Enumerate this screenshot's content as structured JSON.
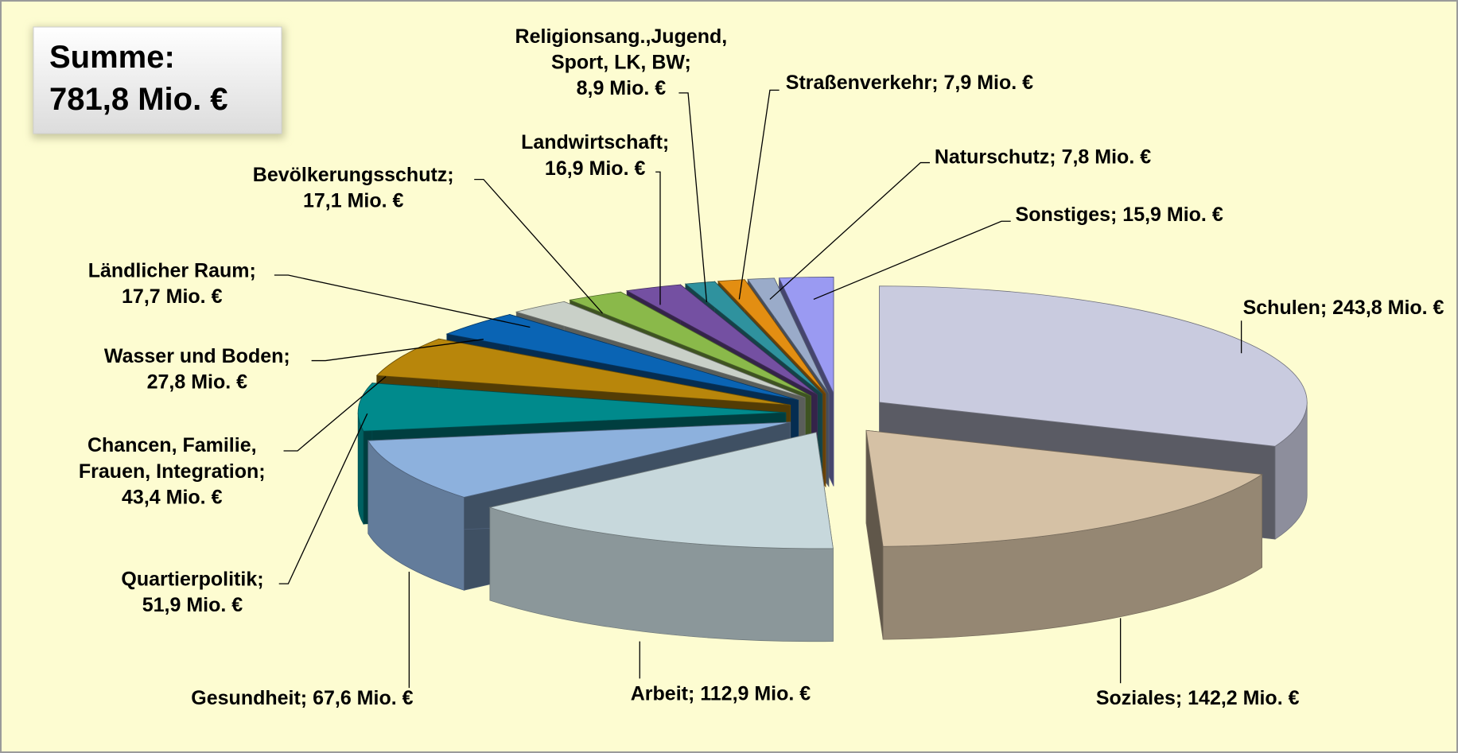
{
  "chart_data": {
    "type": "pie3d",
    "annotation": [
      "Summe:",
      "781,8 Mio. €"
    ],
    "categories": [
      "Schulen",
      "Soziales",
      "Arbeit",
      "Gesundheit",
      "Quartierpolitik",
      "Chancen, Familie, Frauen, Integration",
      "Wasser und Boden",
      "Ländlicher Raum",
      "Bevölkerungsschutz",
      "Landwirtschaft",
      "Religionsang.,Jugend, Sport, LK, BW",
      "Straßenverkehr",
      "Naturschutz",
      "Sonstiges"
    ],
    "values": [
      243.8,
      142.2,
      112.9,
      67.6,
      51.9,
      43.4,
      27.8,
      17.7,
      17.1,
      16.9,
      8.9,
      7.9,
      7.8,
      15.9
    ],
    "value_labels": [
      [
        "Schulen; 243,8 Mio. €"
      ],
      [
        "Soziales; 142,2 Mio. €"
      ],
      [
        "Arbeit; 112,9 Mio. €"
      ],
      [
        "Gesundheit; 67,6 Mio. €"
      ],
      [
        "Quartierpolitik;",
        "51,9 Mio. €"
      ],
      [
        "Chancen, Familie,",
        "Frauen, Integration;",
        "43,4 Mio. €"
      ],
      [
        "Wasser und Boden;",
        "27,8 Mio. €"
      ],
      [
        "Ländlicher Raum;",
        "17,7 Mio. €"
      ],
      [
        "Bevölkerungsschutz;",
        "17,1 Mio. €"
      ],
      [
        "Landwirtschaft;",
        "16,9 Mio. €"
      ],
      [
        "Religionsang.,Jugend,",
        "Sport, LK, BW;",
        "8,9 Mio. €"
      ],
      [
        "Straßenverkehr; 7,9 Mio. €"
      ],
      [
        "Naturschutz; 7,8 Mio. €"
      ],
      [
        "Sonstiges; 15,9 Mio. €"
      ]
    ],
    "colors": [
      "#c9cbdf",
      "#d5c1a5",
      "#c7d8dc",
      "#8db1dd",
      "#008a8c",
      "#b8860b",
      "#0a64b4",
      "#c9d0c8",
      "#8ab94a",
      "#7450a2",
      "#2f929e",
      "#e38e12",
      "#9aabc9",
      "#9a9af2"
    ]
  }
}
